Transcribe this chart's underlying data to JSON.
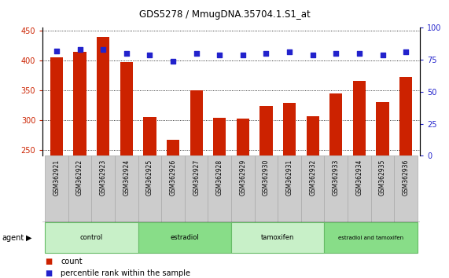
{
  "title": "GDS5278 / MmugDNA.35704.1.S1_at",
  "samples": [
    "GSM362921",
    "GSM362922",
    "GSM362923",
    "GSM362924",
    "GSM362925",
    "GSM362926",
    "GSM362927",
    "GSM362928",
    "GSM362929",
    "GSM362930",
    "GSM362931",
    "GSM362932",
    "GSM362933",
    "GSM362934",
    "GSM362935",
    "GSM362936"
  ],
  "counts": [
    405,
    415,
    440,
    397,
    305,
    267,
    350,
    304,
    303,
    323,
    329,
    306,
    344,
    366,
    330,
    372
  ],
  "percentiles": [
    82,
    83,
    83,
    80,
    79,
    74,
    80,
    79,
    79,
    80,
    81,
    79,
    80,
    80,
    79,
    81
  ],
  "groups": [
    {
      "label": "control",
      "start": 0,
      "end": 4,
      "color": "#c8f0c8",
      "edge": "#66bb66"
    },
    {
      "label": "estradiol",
      "start": 4,
      "end": 8,
      "color": "#88dd88",
      "edge": "#66bb66"
    },
    {
      "label": "tamoxifen",
      "start": 8,
      "end": 12,
      "color": "#c8f0c8",
      "edge": "#66bb66"
    },
    {
      "label": "estradiol and tamoxifen",
      "start": 12,
      "end": 16,
      "color": "#88dd88",
      "edge": "#66bb66"
    }
  ],
  "ylim_left": [
    240,
    455
  ],
  "ylim_right": [
    0,
    100
  ],
  "bar_color": "#cc2200",
  "dot_color": "#2222cc",
  "bar_width": 0.55,
  "background_color": "#ffffff",
  "yticks_left": [
    250,
    300,
    350,
    400,
    450
  ],
  "yticks_right": [
    0,
    25,
    50,
    75,
    100
  ],
  "agent_label": "agent",
  "legend_count": "count",
  "legend_percentile": "percentile rank within the sample"
}
